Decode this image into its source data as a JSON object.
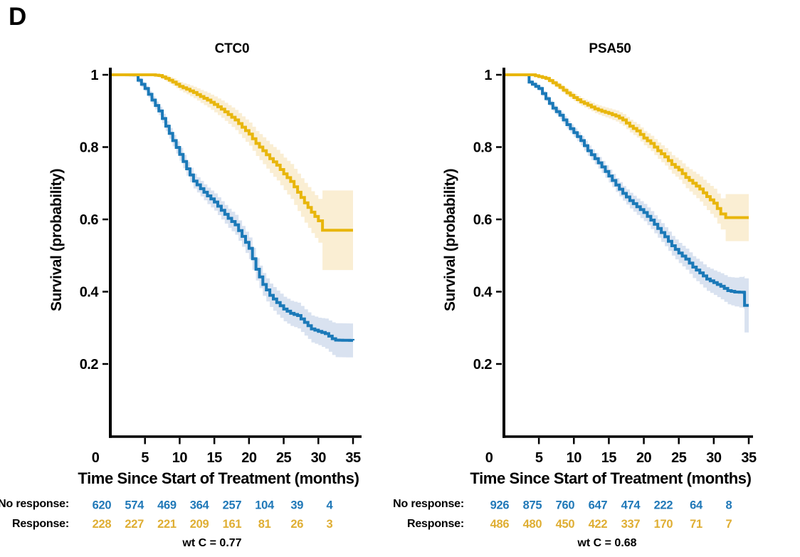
{
  "panel_label": "D",
  "colors": {
    "no_response_line": "#1b79b8",
    "no_response_band": "#d9e2f0",
    "no_response_text": "#2179b8",
    "response_line": "#e8b60c",
    "response_band": "#faeed3",
    "response_text": "#dfae33",
    "axis": "#000000"
  },
  "chart_data": [
    {
      "type": "line",
      "subtype": "kaplan-meier-step",
      "title": "CTC0",
      "xlabel": "Time Since Start of Treatment (months)",
      "ylabel": "Survival (probability)",
      "footer": "wt C = 0.77",
      "xlim": [
        0,
        35
      ],
      "ylim": [
        0,
        1
      ],
      "xticks": [
        0,
        5,
        10,
        15,
        20,
        25,
        30,
        35
      ],
      "yticks": [
        1,
        0.8,
        0.6,
        0.4,
        0.2
      ],
      "grid": false,
      "legend": "none",
      "series": [
        {
          "name": "No response",
          "key": "no_response",
          "x": [
            0,
            3.2,
            4,
            5,
            6,
            7,
            8,
            9,
            10,
            11,
            12,
            13,
            14,
            15,
            16,
            17,
            18,
            19,
            20,
            21,
            22,
            23,
            24,
            25,
            26,
            27,
            28,
            29,
            30,
            31,
            32,
            32.5,
            35
          ],
          "y": [
            1,
            1,
            0.985,
            0.962,
            0.93,
            0.9,
            0.858,
            0.818,
            0.78,
            0.74,
            0.706,
            0.685,
            0.665,
            0.648,
            0.625,
            0.603,
            0.585,
            0.553,
            0.52,
            0.462,
            0.42,
            0.39,
            0.37,
            0.352,
            0.34,
            0.334,
            0.315,
            0.297,
            0.29,
            0.284,
            0.27,
            0.266,
            0.265
          ],
          "ci": [
            [
              0,
              0.002
            ],
            [
              5,
              0.008
            ],
            [
              10,
              0.018
            ],
            [
              15,
              0.024
            ],
            [
              20,
              0.03
            ],
            [
              25,
              0.034
            ],
            [
              30,
              0.038
            ],
            [
              32.5,
              0.047
            ],
            [
              35,
              0.047
            ]
          ]
        },
        {
          "name": "Response",
          "key": "response",
          "x": [
            0,
            6,
            7,
            8,
            9,
            10,
            11,
            12,
            13,
            14,
            15,
            16,
            17,
            18,
            19,
            20,
            21,
            22,
            23,
            24,
            25,
            26,
            27,
            28,
            29,
            30,
            30.6,
            35
          ],
          "y": [
            1,
            1,
            0.998,
            0.99,
            0.98,
            0.968,
            0.96,
            0.951,
            0.94,
            0.93,
            0.918,
            0.905,
            0.89,
            0.875,
            0.855,
            0.836,
            0.81,
            0.79,
            0.768,
            0.75,
            0.726,
            0.705,
            0.675,
            0.646,
            0.62,
            0.596,
            0.57,
            0.57
          ],
          "ci": [
            [
              0,
              0.002
            ],
            [
              6,
              0.004
            ],
            [
              10,
              0.012
            ],
            [
              15,
              0.022
            ],
            [
              20,
              0.032
            ],
            [
              25,
              0.045
            ],
            [
              28,
              0.055
            ],
            [
              30.5,
              0.062
            ],
            [
              30.6,
              0.11
            ],
            [
              35,
              0.11
            ]
          ]
        }
      ],
      "risk_table": {
        "times": [
          0,
          5,
          10,
          15,
          20,
          25,
          30,
          35
        ],
        "rows": [
          {
            "label": "No response:",
            "key": "no_response",
            "values": [
              620,
              574,
              469,
              364,
              257,
              104,
              39,
              4
            ]
          },
          {
            "label": "Response:",
            "key": "response",
            "values": [
              228,
              227,
              221,
              209,
              161,
              81,
              26,
              3
            ]
          }
        ]
      }
    },
    {
      "type": "line",
      "subtype": "kaplan-meier-step",
      "title": "PSA50",
      "xlabel": "Time Since Start of Treatment (months)",
      "ylabel": "Survival (probability)",
      "footer": "wt C = 0.68",
      "xlim": [
        0,
        35
      ],
      "ylim": [
        0,
        1
      ],
      "xticks": [
        0,
        5,
        10,
        15,
        20,
        25,
        30,
        35
      ],
      "yticks": [
        1,
        0.8,
        0.6,
        0.4,
        0.2
      ],
      "grid": false,
      "legend": "none",
      "series": [
        {
          "name": "No response",
          "key": "no_response",
          "x": [
            0,
            2.9,
            3.6,
            5,
            6,
            7,
            8,
            9,
            10,
            11,
            12,
            13,
            14,
            15,
            16,
            17,
            18,
            19,
            20,
            21,
            22,
            23,
            24,
            25,
            26,
            27,
            28,
            29,
            30,
            31,
            32,
            33,
            34.3,
            34.4,
            35
          ],
          "y": [
            1,
            1,
            0.98,
            0.962,
            0.934,
            0.908,
            0.888,
            0.862,
            0.84,
            0.818,
            0.79,
            0.768,
            0.745,
            0.72,
            0.695,
            0.672,
            0.652,
            0.635,
            0.619,
            0.598,
            0.575,
            0.552,
            0.527,
            0.507,
            0.49,
            0.468,
            0.452,
            0.435,
            0.425,
            0.415,
            0.403,
            0.399,
            0.398,
            0.362,
            0.362
          ],
          "ci": [
            [
              0,
              0.002
            ],
            [
              5,
              0.006
            ],
            [
              10,
              0.012
            ],
            [
              15,
              0.018
            ],
            [
              20,
              0.024
            ],
            [
              25,
              0.028
            ],
            [
              30,
              0.034
            ],
            [
              33,
              0.04
            ],
            [
              34.3,
              0.045
            ],
            [
              34.4,
              0.075
            ],
            [
              35,
              0.075
            ]
          ]
        },
        {
          "name": "Response",
          "key": "response",
          "x": [
            0,
            4,
            5,
            6,
            7,
            8,
            9,
            10,
            11,
            12,
            13,
            14,
            15,
            16,
            17,
            18,
            19,
            20,
            21,
            22,
            23,
            24,
            25,
            26,
            27,
            28,
            29,
            30,
            31,
            31.7,
            35
          ],
          "y": [
            1,
            1,
            0.995,
            0.99,
            0.978,
            0.965,
            0.95,
            0.937,
            0.925,
            0.916,
            0.906,
            0.899,
            0.893,
            0.886,
            0.875,
            0.858,
            0.845,
            0.825,
            0.81,
            0.79,
            0.773,
            0.752,
            0.737,
            0.716,
            0.7,
            0.684,
            0.663,
            0.645,
            0.615,
            0.605,
            0.605
          ],
          "ci": [
            [
              0,
              0.002
            ],
            [
              5,
              0.004
            ],
            [
              10,
              0.01
            ],
            [
              15,
              0.014
            ],
            [
              20,
              0.02
            ],
            [
              25,
              0.027
            ],
            [
              30,
              0.04
            ],
            [
              31.6,
              0.045
            ],
            [
              31.7,
              0.065
            ],
            [
              35,
              0.065
            ]
          ]
        }
      ],
      "risk_table": {
        "times": [
          0,
          5,
          10,
          15,
          20,
          25,
          30,
          35
        ],
        "rows": [
          {
            "label": "No response:",
            "key": "no_response",
            "values": [
              926,
              875,
              760,
              647,
              474,
              222,
              64,
              8
            ]
          },
          {
            "label": "Response:",
            "key": "response",
            "values": [
              486,
              480,
              450,
              422,
              337,
              170,
              71,
              7
            ]
          }
        ]
      }
    }
  ]
}
